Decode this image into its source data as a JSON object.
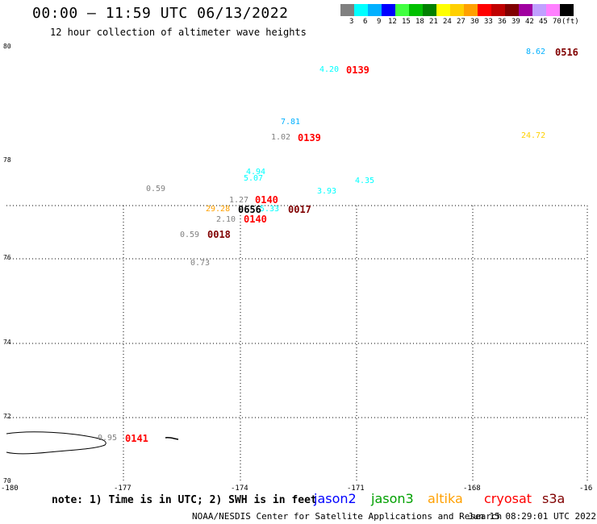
{
  "header": {
    "title": "00:00 – 11:59 UTC 06/13/2022",
    "subtitle": "12 hour collection of altimeter wave heights"
  },
  "legend": {
    "colors": [
      "#808080",
      "#00ffff",
      "#00b0ff",
      "#0000ff",
      "#40ff40",
      "#00c000",
      "#008000",
      "#ffff00",
      "#ffd000",
      "#ffa000",
      "#ff0000",
      "#c00000",
      "#800000",
      "#a000a0",
      "#c0a0ff",
      "#ff80ff",
      "#000000"
    ],
    "labels": [
      "3",
      "6",
      "9",
      "12",
      "15",
      "18",
      "21",
      "24",
      "27",
      "30",
      "33",
      "36",
      "39",
      "42",
      "45",
      "70",
      "(ft)"
    ]
  },
  "axes": {
    "y_labels": [
      "80",
      "78",
      "76",
      "74",
      "72",
      "70"
    ],
    "x_labels": [
      "-180",
      "-177",
      "-174",
      "-171",
      "-168",
      "-16"
    ]
  },
  "observations": [
    {
      "text": "8.62",
      "color": "#00b0ff",
      "kind": "swh"
    },
    {
      "text": "0516",
      "color": "#800000",
      "kind": "time"
    },
    {
      "text": "4.20",
      "color": "#00ffff",
      "kind": "swh"
    },
    {
      "text": "0139",
      "color": "#ff0000",
      "kind": "time"
    },
    {
      "text": "7.81",
      "color": "#00b0ff",
      "kind": "swh"
    },
    {
      "text": "1.02",
      "color": "#808080",
      "kind": "swh"
    },
    {
      "text": "0139",
      "color": "#ff0000",
      "kind": "time"
    },
    {
      "text": "24.72",
      "color": "#ffd000",
      "kind": "swh"
    },
    {
      "text": "4.94",
      "color": "#00ffff",
      "kind": "swh"
    },
    {
      "text": "5.07",
      "color": "#00ffff",
      "kind": "swh"
    },
    {
      "text": "4.35",
      "color": "#00ffff",
      "kind": "swh"
    },
    {
      "text": "0.59",
      "color": "#808080",
      "kind": "swh"
    },
    {
      "text": "3.93",
      "color": "#00ffff",
      "kind": "swh"
    },
    {
      "text": "1.27",
      "color": "#808080",
      "kind": "swh"
    },
    {
      "text": "0140",
      "color": "#ff0000",
      "kind": "time"
    },
    {
      "text": "29.28",
      "color": "#ffa000",
      "kind": "swh"
    },
    {
      "text": "0656",
      "color": "#000000",
      "kind": "time"
    },
    {
      "text": "5.33",
      "color": "#00ffff",
      "kind": "swh"
    },
    {
      "text": "0017",
      "color": "#800000",
      "kind": "time"
    },
    {
      "text": "2.10",
      "color": "#808080",
      "kind": "swh"
    },
    {
      "text": "0140",
      "color": "#ff0000",
      "kind": "time"
    },
    {
      "text": "0.59",
      "color": "#808080",
      "kind": "swh"
    },
    {
      "text": "0018",
      "color": "#800000",
      "kind": "time"
    },
    {
      "text": "0.73",
      "color": "#808080",
      "kind": "swh"
    },
    {
      "text": "0.95",
      "color": "#808080",
      "kind": "swh"
    },
    {
      "text": "0141",
      "color": "#ff0000",
      "kind": "time"
    }
  ],
  "footer": {
    "note": "note: 1) Time is in UTC; 2) SWH is in feet",
    "satellites": [
      {
        "name": "jason2",
        "color": "#0000ff"
      },
      {
        "name": "jason3",
        "color": "#00a000"
      },
      {
        "name": "altika",
        "color": "#ffa000"
      },
      {
        "name": "cryosat",
        "color": "#ff0000"
      },
      {
        "name": "s3a",
        "color": "#800000"
      }
    ],
    "credit": "NOAA/NESDIS Center for Satellite Applications and Research",
    "timestamp": "Jun 15 08:29:01 UTC 2022"
  }
}
